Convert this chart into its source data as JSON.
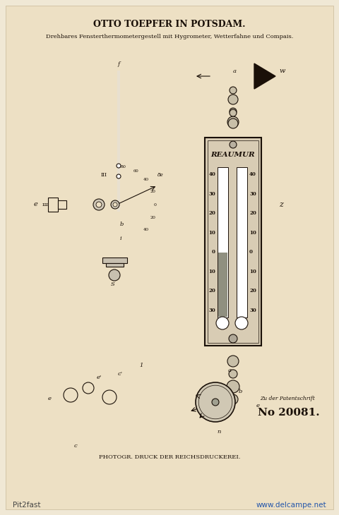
{
  "bg_color": "#f0e8d5",
  "paper_color": "#ede0c4",
  "title1": "OTTO TOEPFER IN POTSDAM.",
  "title2": "Drehbares Fensterthermometergestell mit Hygrometer, Wetterfahne und Compais.",
  "footer1": "PHOTOGR. DRUCK DER REICHSDRUCKEREI.",
  "patent_label": "Zu der Patentschrift",
  "patent_number": "No 20081.",
  "watermark_left": "Pit2fast",
  "watermark_right": "www.delcampe.net",
  "line_color": "#1a1008",
  "dark_color": "#1a1008"
}
